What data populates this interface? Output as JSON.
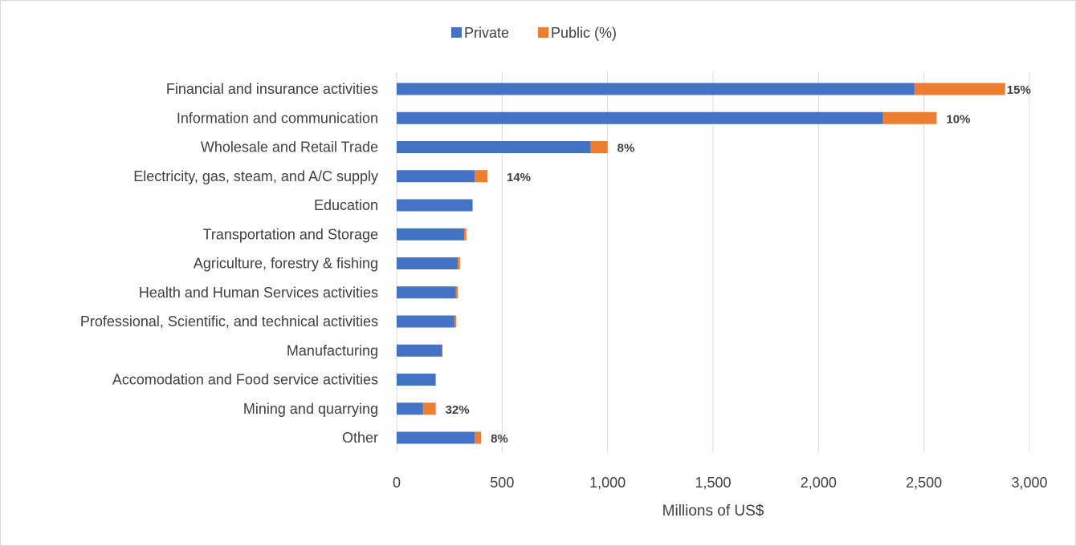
{
  "chart_data": {
    "type": "bar",
    "orientation": "horizontal",
    "stacked": true,
    "categories": [
      "Financial and insurance activities",
      "Information and communication",
      "Wholesale and Retail Trade",
      "Electricity, gas, steam, and A/C supply",
      "Education",
      "Transportation and Storage",
      "Agriculture, forestry & fishing",
      "Health and Human Services activities",
      "Professional, Scientific, and technical activities",
      "Manufacturing",
      "Accomodation and Food service activities",
      "Mining and quarrying",
      "Other"
    ],
    "series": [
      {
        "name": "Private",
        "color": "#4472c4",
        "values": [
          2455,
          2305,
          920,
          370,
          360,
          320,
          290,
          280,
          275,
          215,
          185,
          125,
          370
        ]
      },
      {
        "name": "Public (%)",
        "color": "#ed7d31",
        "values": [
          430,
          255,
          80,
          60,
          0,
          10,
          10,
          10,
          8,
          2,
          0,
          60,
          30
        ]
      }
    ],
    "data_labels": [
      "15%",
      "10%",
      "8%",
      "14%",
      "",
      "",
      "",
      "",
      "",
      "",
      "",
      "32%",
      "8%"
    ],
    "xlabel": "Millions of US$",
    "ylabel": "",
    "xlim": [
      0,
      3000
    ],
    "xticks": [
      0,
      500,
      1000,
      1500,
      2000,
      2500,
      3000
    ],
    "xtick_labels": [
      "0",
      "500",
      "1,000",
      "1,500",
      "2,000",
      "2,500",
      "3,000"
    ],
    "grid": "vertical",
    "legend_position": "top-center"
  }
}
